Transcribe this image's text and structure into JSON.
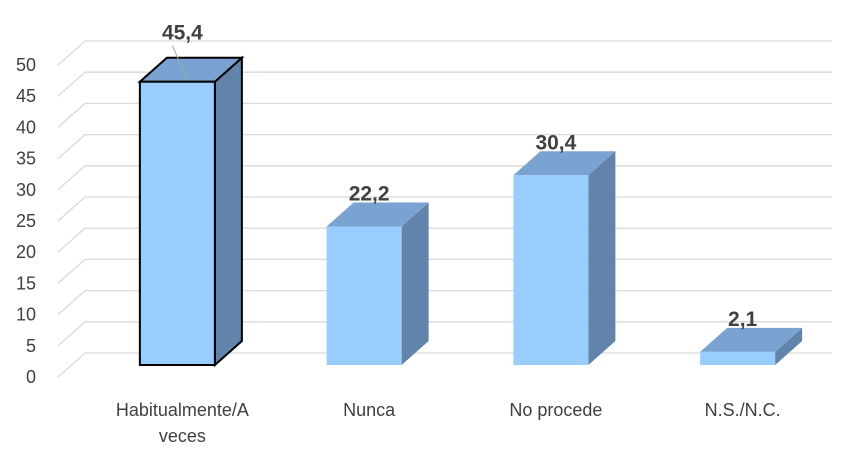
{
  "chart_data": {
    "type": "bar",
    "style": "3d-column",
    "categories": [
      "Habitualmente/A veces",
      "Nunca",
      "No procede",
      "N.S./N.C."
    ],
    "category_lines": [
      [
        "Habitualmente/A",
        "veces"
      ],
      [
        "Nunca"
      ],
      [
        "No procede"
      ],
      [
        "N.S./N.C."
      ]
    ],
    "values": [
      45.4,
      22.2,
      30.4,
      2.1
    ],
    "data_labels": [
      "45,4",
      "22,2",
      "30,4",
      "2,1"
    ],
    "yticks": [
      "0",
      "5",
      "10",
      "15",
      "20",
      "25",
      "30",
      "35",
      "40",
      "45",
      "50"
    ],
    "ylim": [
      0,
      50
    ],
    "grid": true,
    "legend": "none",
    "highlighted_category": "Habitualmente/A veces",
    "colors": {
      "front": "#99ccff",
      "side": "#6283aa",
      "top": "#7aa3d2",
      "grid": "#d9d9d9",
      "text": "#404040"
    }
  }
}
